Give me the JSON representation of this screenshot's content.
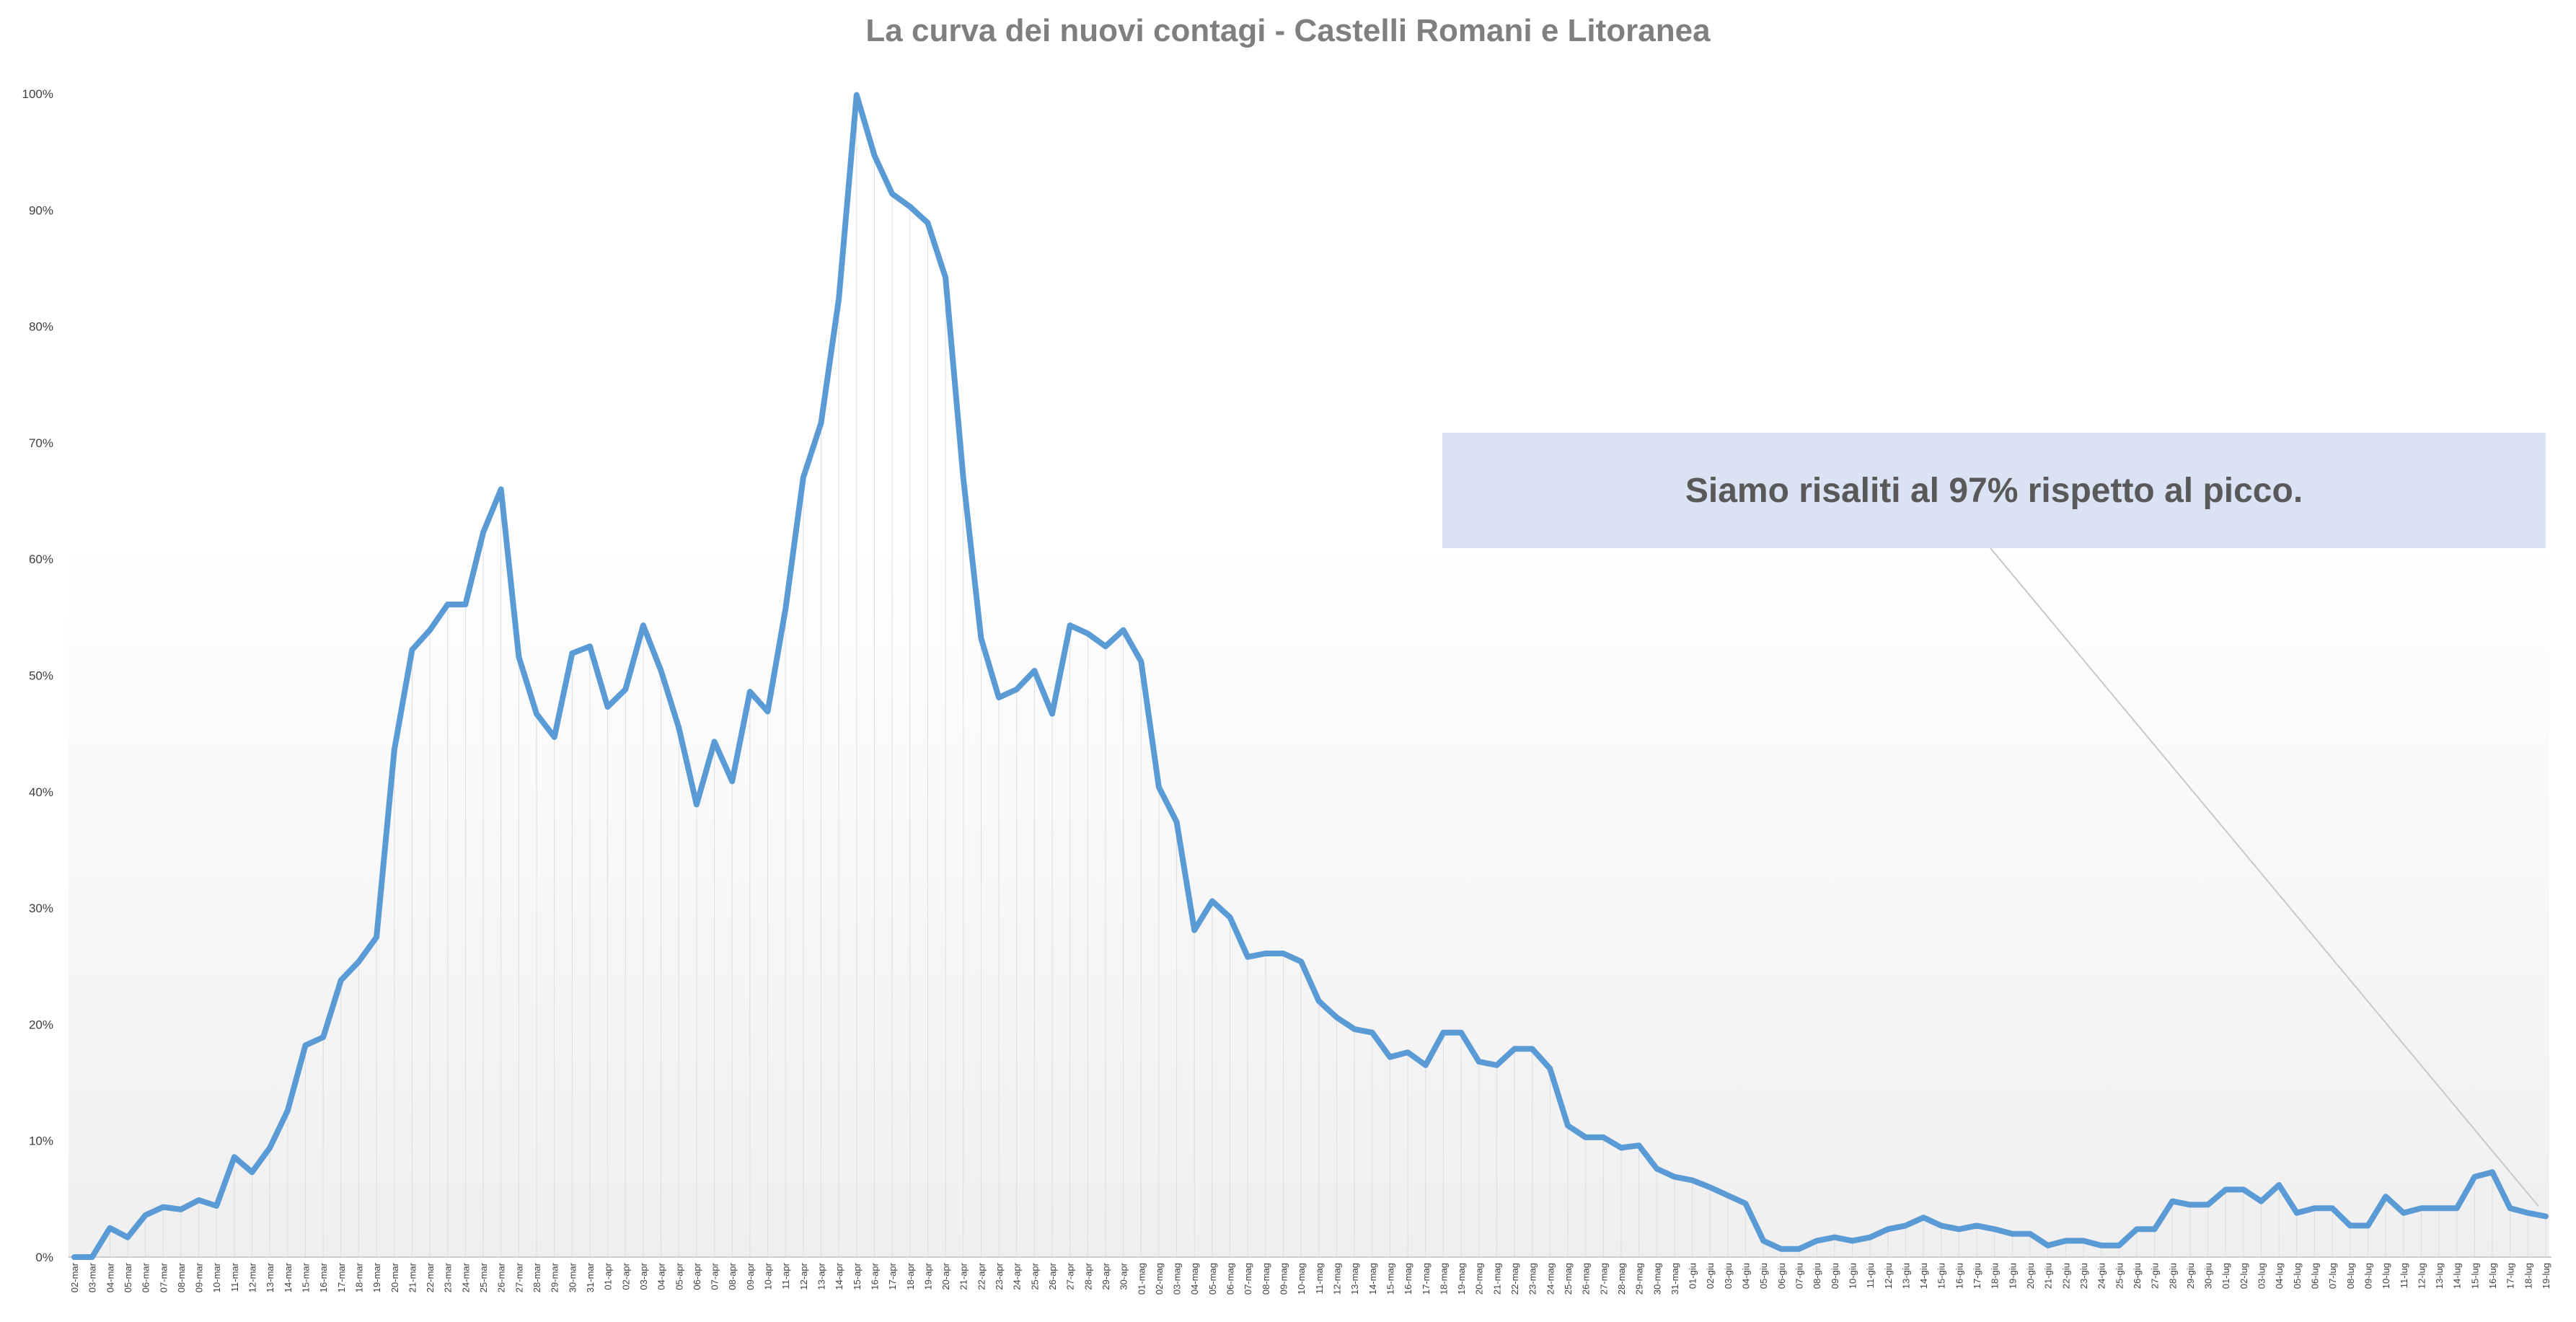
{
  "chart_data": {
    "type": "line",
    "title": "La curva dei nuovi contagi - Castelli Romani e Litoranea",
    "xlabel": "",
    "ylabel": "",
    "ylim": [
      0,
      100
    ],
    "y_ticks": [
      "0%",
      "10%",
      "20%",
      "30%",
      "40%",
      "50%",
      "60%",
      "70%",
      "80%",
      "90%",
      "100%"
    ],
    "grid": "vertical",
    "legend": "none",
    "line_color": "#5b9bd5",
    "callout": "Siamo risaliti al 97% rispetto al picco.",
    "x": [
      "02-mar",
      "03-mar",
      "04-mar",
      "05-mar",
      "06-mar",
      "07-mar",
      "08-mar",
      "09-mar",
      "10-mar",
      "11-mar",
      "12-mar",
      "13-mar",
      "14-mar",
      "15-mar",
      "16-mar",
      "17-mar",
      "18-mar",
      "19-mar",
      "20-mar",
      "21-mar",
      "22-mar",
      "23-mar",
      "24-mar",
      "25-mar",
      "26-mar",
      "27-mar",
      "28-mar",
      "29-mar",
      "30-mar",
      "31-mar",
      "01-apr",
      "02-apr",
      "03-apr",
      "04-apr",
      "05-apr",
      "06-apr",
      "07-apr",
      "08-apr",
      "09-apr",
      "10-apr",
      "11-apr",
      "12-apr",
      "13-apr",
      "14-apr",
      "15-apr",
      "16-apr",
      "17-apr",
      "18-apr",
      "19-apr",
      "20-apr",
      "21-apr",
      "22-apr",
      "23-apr",
      "24-apr",
      "25-apr",
      "26-apr",
      "27-apr",
      "28-apr",
      "29-apr",
      "30-apr",
      "01-mag",
      "02-mag",
      "03-mag",
      "04-mag",
      "05-mag",
      "06-mag",
      "07-mag",
      "08-mag",
      "09-mag",
      "10-mag",
      "11-mag",
      "12-mag",
      "13-mag",
      "14-mag",
      "15-mag",
      "16-mag",
      "17-mag",
      "18-mag",
      "19-mag",
      "20-mag",
      "21-mag",
      "22-mag",
      "23-mag",
      "24-mag",
      "25-mag",
      "26-mag",
      "27-mag",
      "28-mag",
      "29-mag",
      "30-mag",
      "31-mag",
      "01-giu",
      "02-giu",
      "03-giu",
      "04-giu",
      "05-giu",
      "06-giu",
      "07-giu",
      "08-giu",
      "09-giu",
      "10-giu",
      "11-giu",
      "12-giu",
      "13-giu",
      "14-giu",
      "15-giu",
      "16-giu",
      "17-giu",
      "18-giu",
      "19-giu",
      "20-giu",
      "21-giu",
      "22-giu",
      "23-giu",
      "24-giu",
      "25-giu",
      "26-giu",
      "27-giu",
      "28-giu",
      "29-giu",
      "30-giu",
      "01-lug",
      "02-lug",
      "03-lug",
      "04-lug",
      "05-lug",
      "06-lug",
      "07-lug",
      "08-lug",
      "09-lug",
      "10-lug",
      "11-lug",
      "12-lug",
      "13-lug",
      "14-lug",
      "15-lug",
      "16-lug",
      "17-lug",
      "18-lug",
      "19-lug"
    ],
    "series": [
      {
        "values": [
          0,
          0,
          2.5,
          1.7,
          3.6,
          4.3,
          4.1,
          4.9,
          4.4,
          8.6,
          7.3,
          9.4,
          12.6,
          18.2,
          18.9,
          23.8,
          25.4,
          27.5,
          43.6,
          52.2,
          53.9,
          56.1,
          56.1,
          62.3,
          66.0,
          51.6,
          46.7,
          44.7,
          51.9,
          52.5,
          47.3,
          48.8,
          54.3,
          50.4,
          45.5,
          38.9,
          44.3,
          40.9,
          48.6,
          46.9,
          55.7,
          67.0,
          71.7,
          82.4,
          99.9,
          94.7,
          91.4,
          90.3,
          88.9,
          84.2,
          67.0,
          53.2,
          48.1,
          48.8,
          50.4,
          46.7,
          54.3,
          53.6,
          52.5,
          53.9,
          51.2,
          40.4,
          37.4,
          28.1,
          30.6,
          29.2,
          25.8,
          26.1,
          26.1,
          25.4,
          22.0,
          20.6,
          19.6,
          19.3,
          17.2,
          17.6,
          16.5,
          19.3,
          19.3,
          16.8,
          16.5,
          17.9,
          17.9,
          16.2,
          11.3,
          10.3,
          10.3,
          9.4,
          9.6,
          7.6,
          6.9,
          6.6,
          6.0,
          5.3,
          4.6,
          1.4,
          0.7,
          0.7,
          1.4,
          1.7,
          1.4,
          1.7,
          2.4,
          2.7,
          3.4,
          2.7,
          2.4,
          2.7,
          2.4,
          2.0,
          2.0,
          1.0,
          1.4,
          1.4,
          1.0,
          1.0,
          2.4,
          2.4,
          4.8,
          4.5,
          4.5,
          5.8,
          5.8,
          4.8,
          6.2,
          3.8,
          4.2,
          4.2,
          2.7,
          2.7,
          5.2,
          3.8,
          4.2,
          4.2,
          4.2,
          6.9,
          7.3,
          4.2,
          3.8,
          3.5
        ]
      }
    ]
  }
}
